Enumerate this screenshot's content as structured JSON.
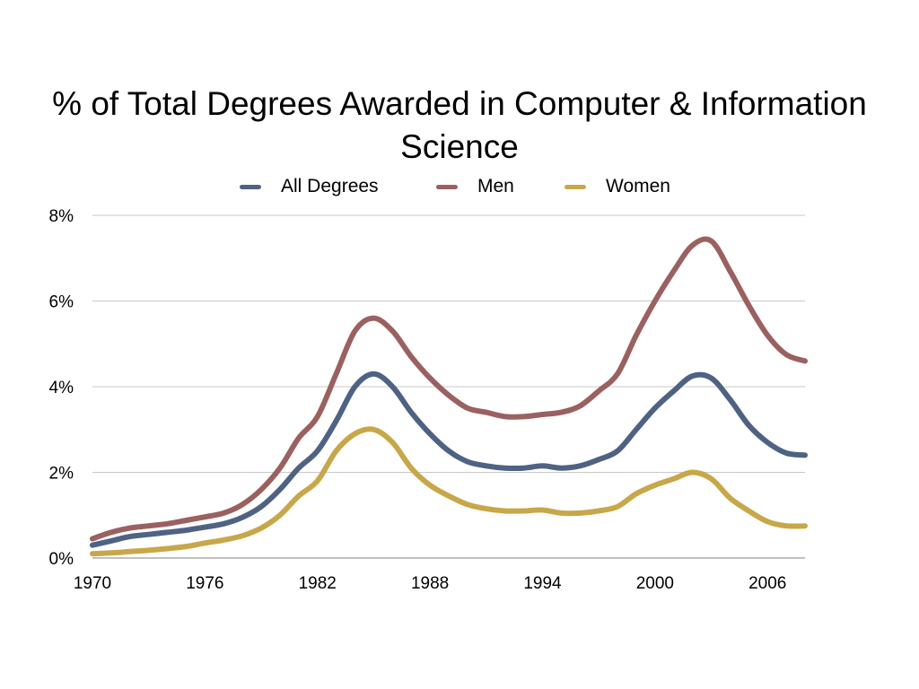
{
  "chart_data": {
    "type": "line",
    "title": "% of Total Degrees Awarded in Computer & Information Science",
    "title_lines": [
      "% of Total Degrees Awarded in Computer & Information",
      "Science"
    ],
    "xlabel": "",
    "ylabel": "",
    "xlim": [
      1970,
      2008
    ],
    "ylim": [
      0,
      8
    ],
    "x_ticks": [
      1970,
      1976,
      1982,
      1988,
      1994,
      2000,
      2006
    ],
    "y_ticks": [
      0,
      2,
      4,
      6,
      8
    ],
    "y_tick_labels": [
      "0%",
      "2%",
      "4%",
      "6%",
      "8%"
    ],
    "grid": true,
    "legend_position": "top-center",
    "x": [
      1970,
      1971,
      1972,
      1973,
      1974,
      1975,
      1976,
      1977,
      1978,
      1979,
      1980,
      1981,
      1982,
      1983,
      1984,
      1985,
      1986,
      1987,
      1988,
      1989,
      1990,
      1991,
      1992,
      1993,
      1994,
      1995,
      1996,
      1997,
      1998,
      1999,
      2000,
      2001,
      2002,
      2003,
      2004,
      2005,
      2006,
      2007,
      2008
    ],
    "series": [
      {
        "name": "All Degrees",
        "color": "#4e6283",
        "values": [
          0.3,
          0.4,
          0.5,
          0.55,
          0.6,
          0.65,
          0.72,
          0.8,
          0.95,
          1.2,
          1.6,
          2.1,
          2.5,
          3.2,
          4.0,
          4.3,
          4.0,
          3.4,
          2.9,
          2.5,
          2.25,
          2.15,
          2.1,
          2.1,
          2.15,
          2.1,
          2.15,
          2.3,
          2.5,
          3.0,
          3.5,
          3.9,
          4.25,
          4.2,
          3.7,
          3.1,
          2.7,
          2.45,
          2.4
        ]
      },
      {
        "name": "Men",
        "color": "#9a6160",
        "values": [
          0.45,
          0.6,
          0.7,
          0.75,
          0.8,
          0.88,
          0.96,
          1.05,
          1.25,
          1.6,
          2.1,
          2.8,
          3.3,
          4.3,
          5.3,
          5.6,
          5.3,
          4.7,
          4.2,
          3.8,
          3.5,
          3.4,
          3.3,
          3.3,
          3.35,
          3.4,
          3.55,
          3.9,
          4.3,
          5.2,
          6.0,
          6.7,
          7.3,
          7.4,
          6.7,
          5.9,
          5.2,
          4.75,
          4.6
        ]
      },
      {
        "name": "Women",
        "color": "#c8a74a",
        "values": [
          0.1,
          0.12,
          0.15,
          0.18,
          0.22,
          0.27,
          0.35,
          0.42,
          0.52,
          0.7,
          1.0,
          1.45,
          1.8,
          2.5,
          2.9,
          3.0,
          2.7,
          2.1,
          1.7,
          1.45,
          1.25,
          1.15,
          1.1,
          1.1,
          1.12,
          1.05,
          1.05,
          1.1,
          1.2,
          1.5,
          1.7,
          1.85,
          2.0,
          1.85,
          1.4,
          1.1,
          0.85,
          0.75,
          0.75
        ]
      }
    ]
  }
}
